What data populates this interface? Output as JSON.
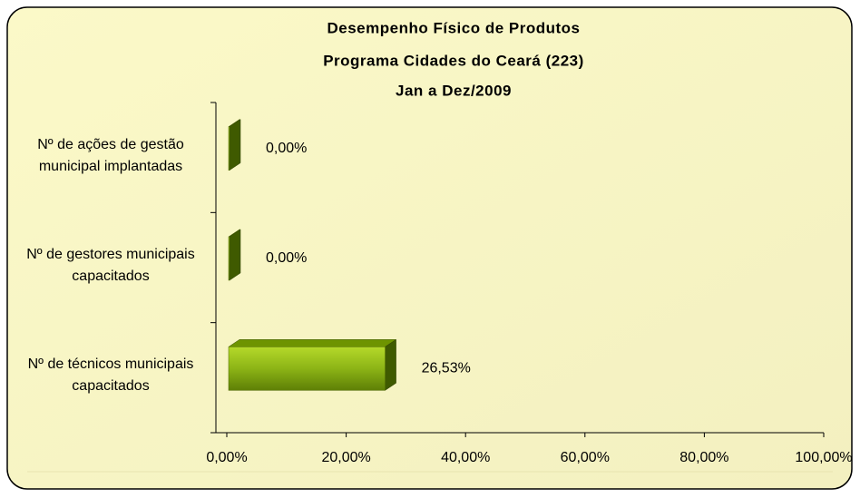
{
  "chart_data": {
    "type": "bar3d-horizontal",
    "title": "Desempenho Físico de Produtos",
    "subtitle": "Programa Cidades do Ceará (223)",
    "period": "Jan a Dez/2009",
    "categories": [
      "Nº de ações de gestão municipal implantadas",
      "Nº de gestores municipais capacitados",
      "Nº de técnicos municipais capacitados"
    ],
    "values": [
      0,
      0,
      26.53
    ],
    "value_labels": [
      "0,00%",
      "0,00%",
      "26,53%"
    ],
    "color": "#7fa800",
    "xlim": [
      0,
      100
    ],
    "xticks": [
      {
        "value": 0,
        "label": "0,00%"
      },
      {
        "value": 20,
        "label": "20,00%"
      },
      {
        "value": 40,
        "label": "40,00%"
      },
      {
        "value": 60,
        "label": "60,00%"
      },
      {
        "value": 80,
        "label": "80,00%"
      },
      {
        "value": 100,
        "label": "100,00%"
      }
    ]
  }
}
